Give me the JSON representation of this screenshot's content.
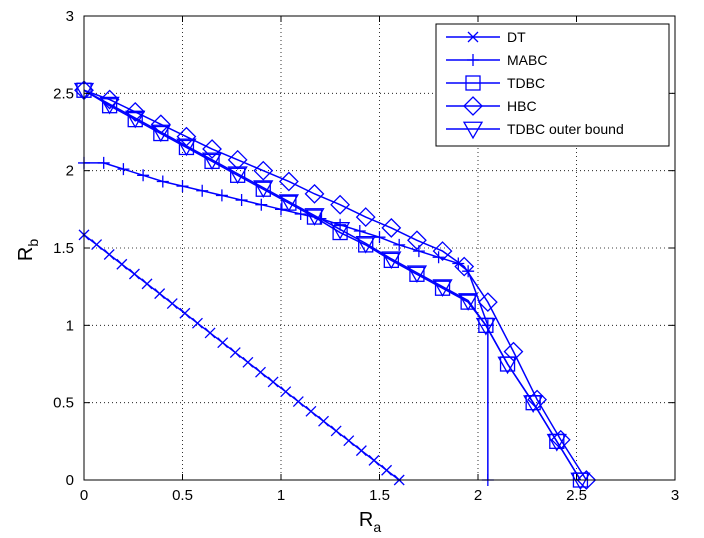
{
  "chart_data": {
    "type": "line",
    "xlabel": "R",
    "xlabel_sub": "a",
    "ylabel": "R",
    "ylabel_sub": "b",
    "xlim": [
      0,
      3
    ],
    "ylim": [
      0,
      3
    ],
    "x_ticks": [
      "0",
      "0.5",
      "1",
      "1.5",
      "2",
      "2.5",
      "3"
    ],
    "y_ticks": [
      "0",
      "0.5",
      "1",
      "1.5",
      "2",
      "2.5",
      "3"
    ],
    "grid": true,
    "legend_position": "top-right",
    "series": [
      {
        "name": "DT",
        "marker": "x",
        "x": [
          0,
          0.064,
          0.128,
          0.192,
          0.256,
          0.32,
          0.384,
          0.448,
          0.512,
          0.576,
          0.64,
          0.704,
          0.768,
          0.832,
          0.896,
          0.96,
          1.024,
          1.088,
          1.152,
          1.216,
          1.28,
          1.344,
          1.408,
          1.472,
          1.536,
          1.6
        ],
        "y": [
          1.585,
          1.522,
          1.458,
          1.395,
          1.332,
          1.268,
          1.205,
          1.141,
          1.078,
          1.014,
          0.951,
          0.888,
          0.824,
          0.761,
          0.697,
          0.634,
          0.571,
          0.507,
          0.444,
          0.38,
          0.317,
          0.254,
          0.19,
          0.127,
          0.063,
          0
        ]
      },
      {
        "name": "MABC",
        "marker": "+",
        "x": [
          0,
          0.1,
          0.2,
          0.3,
          0.4,
          0.5,
          0.6,
          0.7,
          0.8,
          0.9,
          1.0,
          1.1,
          1.2,
          1.3,
          1.4,
          1.5,
          1.6,
          1.7,
          1.8,
          1.9,
          1.95,
          2.05,
          2.05
        ],
        "y": [
          2.05,
          2.05,
          2.01,
          1.97,
          1.93,
          1.9,
          1.87,
          1.84,
          1.81,
          1.78,
          1.75,
          1.72,
          1.69,
          1.65,
          1.61,
          1.57,
          1.52,
          1.48,
          1.44,
          1.4,
          1.35,
          1.0,
          0
        ]
      },
      {
        "name": "TDBC",
        "marker": "square",
        "x": [
          0,
          0.13,
          0.26,
          0.39,
          0.52,
          0.65,
          0.78,
          0.91,
          1.04,
          1.17,
          1.3,
          1.43,
          1.56,
          1.69,
          1.82,
          1.95,
          2.04,
          2.15,
          2.28,
          2.4,
          2.52
        ],
        "y": [
          2.52,
          2.42,
          2.33,
          2.24,
          2.15,
          2.06,
          1.97,
          1.88,
          1.79,
          1.7,
          1.6,
          1.52,
          1.42,
          1.33,
          1.24,
          1.15,
          1.0,
          0.75,
          0.5,
          0.25,
          0
        ]
      },
      {
        "name": "HBC",
        "marker": "diamond",
        "x": [
          0,
          0.13,
          0.26,
          0.39,
          0.52,
          0.65,
          0.78,
          0.91,
          1.04,
          1.17,
          1.3,
          1.43,
          1.56,
          1.69,
          1.82,
          1.93,
          2.05,
          2.18,
          2.3,
          2.42,
          2.55
        ],
        "y": [
          2.52,
          2.46,
          2.38,
          2.3,
          2.22,
          2.14,
          2.07,
          2.0,
          1.93,
          1.85,
          1.78,
          1.7,
          1.63,
          1.55,
          1.48,
          1.38,
          1.15,
          0.83,
          0.52,
          0.26,
          0
        ]
      },
      {
        "name": "TDBC outer bound",
        "marker": "triangle-down",
        "x": [
          0,
          0.13,
          0.26,
          0.39,
          0.52,
          0.65,
          0.78,
          0.91,
          1.04,
          1.17,
          1.3,
          1.43,
          1.56,
          1.69,
          1.82,
          1.95,
          2.04,
          2.15,
          2.28,
          2.4,
          2.52
        ],
        "y": [
          2.52,
          2.43,
          2.34,
          2.25,
          2.16,
          2.07,
          1.98,
          1.89,
          1.8,
          1.71,
          1.62,
          1.53,
          1.43,
          1.34,
          1.25,
          1.16,
          1.0,
          0.75,
          0.5,
          0.25,
          0
        ]
      }
    ]
  }
}
